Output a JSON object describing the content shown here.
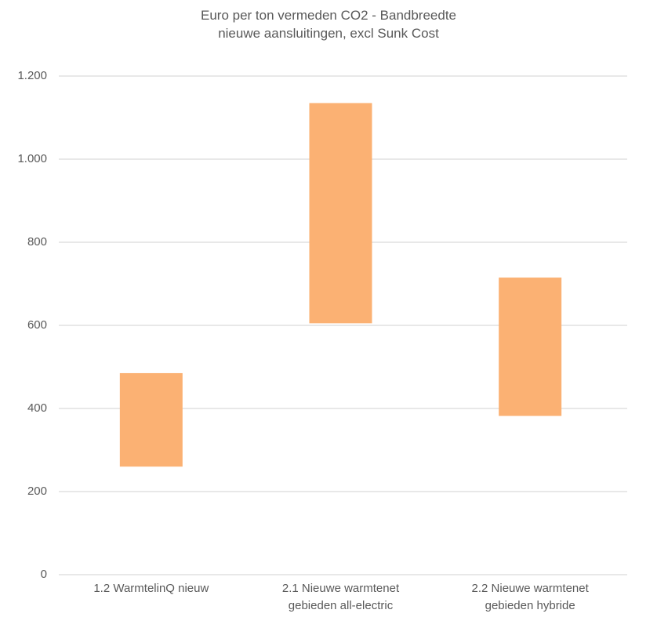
{
  "chart_data": {
    "type": "bar",
    "subtype": "floating-range",
    "title_lines": [
      "Euro per ton vermeden CO2 - Bandbreedte",
      "nieuwe aansluitingen, excl Sunk Cost"
    ],
    "categories": [
      {
        "lines": [
          "1.2 WarmtelinQ nieuw"
        ]
      },
      {
        "lines": [
          "2.1 Nieuwe warmtenet",
          "gebieden all-electric"
        ]
      },
      {
        "lines": [
          "2.2 Nieuwe warmtenet",
          "gebieden hybride"
        ]
      }
    ],
    "ranges": [
      {
        "low": 260,
        "high": 485
      },
      {
        "low": 605,
        "high": 1135
      },
      {
        "low": 382,
        "high": 715
      }
    ],
    "ylim": [
      0,
      1200
    ],
    "y_ticks": [
      {
        "value": 0,
        "label": "0"
      },
      {
        "value": 200,
        "label": "200"
      },
      {
        "value": 400,
        "label": "400"
      },
      {
        "value": 600,
        "label": "600"
      },
      {
        "value": 800,
        "label": "800"
      },
      {
        "value": 1000,
        "label": "1.000"
      },
      {
        "value": 1200,
        "label": "1.200"
      }
    ],
    "grid": true,
    "legend": "none",
    "colors": {
      "bar": "#FBB173",
      "grid": "#d9d9d9",
      "text": "#595959"
    }
  }
}
